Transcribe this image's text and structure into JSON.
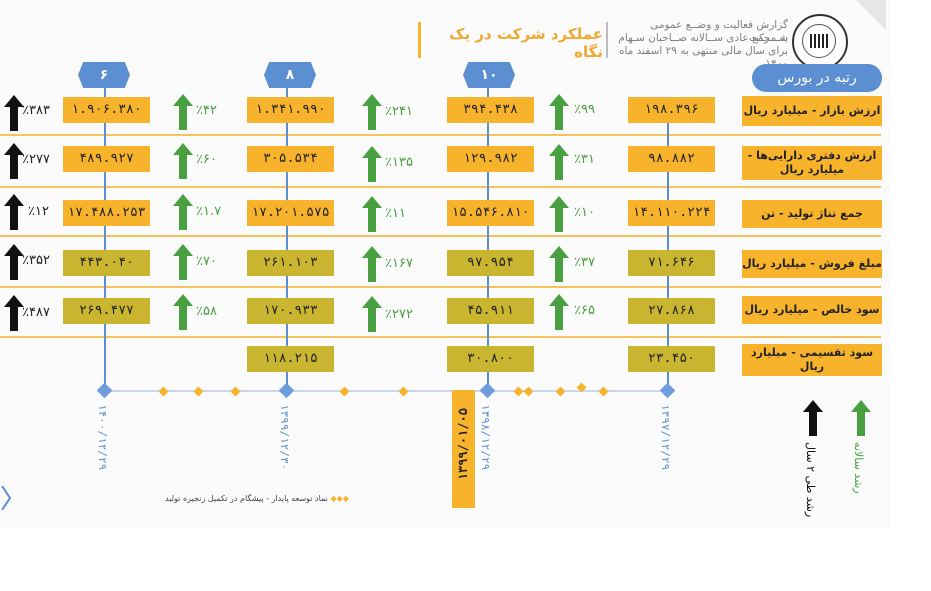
{
  "header": {
    "title": "عملکرد شرکت در یک نگاه",
    "subtitle_lines": [
      "گزارش فعالیت و وضــع عمومی شـــرکت",
      "به مجمع عادی ســالانه صــاحبان سـهام",
      "برای سال مالی منتهی به ۲۹ اسفند ماه ۱۴۰۰"
    ]
  },
  "rank": {
    "label": "رتبه در بورس",
    "badges": [
      "۶",
      "۸",
      "۱۰"
    ]
  },
  "rows": [
    {
      "label": "ارزش بازار - میلیارد ریال",
      "values": [
        "۱.۹۰۶.۳۸۰",
        "۱.۳۴۱.۹۹۰",
        "۳۹۴.۴۳۸",
        "۱۹۸.۳۹۶"
      ],
      "pcts": [
        "٪۴۲",
        "٪۲۴۱",
        "٪۹۹"
      ],
      "two_year": "٪۳۸۳"
    },
    {
      "label": "ارزش دفتری دارایی‌ها - میلیارد ریال",
      "values": [
        "۴۸۹.۹۲۷",
        "۳۰۵.۵۳۴",
        "۱۲۹.۹۸۲",
        "۹۸.۸۸۲"
      ],
      "pcts": [
        "٪۶۰",
        "٪۱۳۵",
        "٪۳۱"
      ],
      "two_year": "٪۲۷۷"
    },
    {
      "label": "جمع تناژ تولید - تن",
      "values": [
        "۱۷.۴۸۸.۲۵۳",
        "۱۷.۲۰۱.۵۷۵",
        "۱۵.۵۴۶.۸۱۰",
        "۱۴.۱۱۰.۲۲۴"
      ],
      "pcts": [
        "٪۱.۷",
        "٪۱۱",
        "٪۱۰"
      ],
      "two_year": "٪۱۲"
    },
    {
      "label": "مبلغ فروش - میلیارد ریال",
      "values": [
        "۴۴۳.۰۴۰",
        "۲۶۱.۱۰۳",
        "۹۷.۹۵۴",
        "۷۱.۶۴۶"
      ],
      "pcts": [
        "٪۷۰",
        "٪۱۶۷",
        "٪۳۷"
      ],
      "two_year": "٪۳۵۲"
    },
    {
      "label": "سود خالص - میلیارد ریال",
      "values": [
        "۲۶۹.۴۷۷",
        "۱۷۰.۹۳۳",
        "۴۵.۹۱۱",
        "۲۷.۸۶۸"
      ],
      "pcts": [
        "٪۵۸",
        "٪۲۷۲",
        "٪۶۵"
      ],
      "two_year": "٪۴۸۷"
    },
    {
      "label": "سود تقسیمی - میلیارد ریال",
      "values": [
        "",
        "۱۱۸.۲۱۵",
        "۳۰.۸۰۰",
        "۲۳.۴۵۰"
      ],
      "pcts": [
        "",
        "",
        ""
      ],
      "two_year": ""
    }
  ],
  "timeline": {
    "dates": [
      "۱۴۰۰/۱۲/۲۹",
      "۱۳۹۹/۱۲/۳۰",
      "۱۳۹۸/۱۲/۲۹",
      "۱۳۹۷/۱۲/۲۹"
    ],
    "milestone": "۱۳۹۹/۰۱/۰۵"
  },
  "legend": {
    "annual": "رشد سالانه",
    "two_year": "رشد طی ۲ سال",
    "footnote": "نماد توسعه پایدار - پیشگام در تکمیل زنجیره تولید"
  },
  "colors": {
    "orange": "#f7b32b",
    "olive": "#c9b52f",
    "blue": "#5b8fd1",
    "green": "#49a040",
    "black": "#111111"
  }
}
